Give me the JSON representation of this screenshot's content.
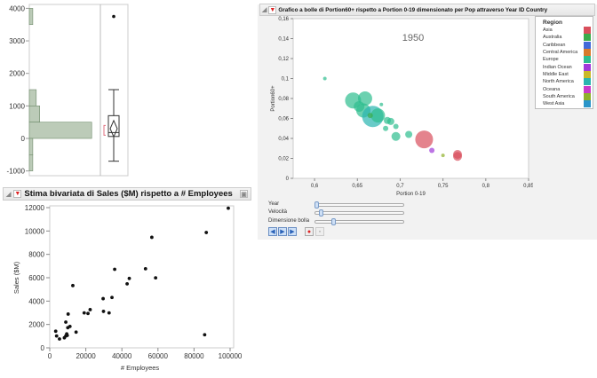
{
  "distribution": {
    "y_ticks": [
      "4000",
      "3000",
      "2000",
      "1000",
      "0",
      "-1000"
    ],
    "histogram": [
      {
        "from": 3500,
        "to": 4000,
        "count": 1
      },
      {
        "from": 1000,
        "to": 1500,
        "count": 2
      },
      {
        "from": 500,
        "to": 1000,
        "count": 3
      },
      {
        "from": 0,
        "to": 500,
        "count": 18
      },
      {
        "from": -500,
        "to": 0,
        "count": 1
      },
      {
        "from": -1000,
        "to": -500,
        "count": 1
      }
    ],
    "boxplot": {
      "min": -700,
      "q1": 60,
      "median": 180,
      "q3": 700,
      "max": 1500,
      "mean": 300,
      "outlier": 3750,
      "shortest_half": [
        100,
        400
      ]
    }
  },
  "bivariate": {
    "title": "Stima bivariata di Sales ($M) rispetto a # Employees",
    "chart_data": {
      "type": "scatter",
      "xlabel": "# Employees",
      "ylabel": "Sales ($M)",
      "xlim": [
        0,
        100000
      ],
      "ylim": [
        0,
        12000
      ],
      "x_ticks": [
        "0",
        "20000",
        "40000",
        "60000",
        "80000",
        "100000"
      ],
      "y_ticks": [
        "0",
        "2000",
        "4000",
        "6000",
        "8000",
        "10000",
        "12000"
      ],
      "points": [
        [
          3300,
          1420
        ],
        [
          3800,
          1015
        ],
        [
          5400,
          760
        ],
        [
          8100,
          860
        ],
        [
          8900,
          1015
        ],
        [
          8900,
          2200
        ],
        [
          9400,
          1190
        ],
        [
          9700,
          1065
        ],
        [
          10000,
          1725
        ],
        [
          10200,
          2890
        ],
        [
          11200,
          1830
        ],
        [
          12800,
          5330
        ],
        [
          14600,
          1345
        ],
        [
          19100,
          2990
        ],
        [
          21200,
          2940
        ],
        [
          22400,
          3270
        ],
        [
          29600,
          4210
        ],
        [
          29800,
          3120
        ],
        [
          32900,
          2990
        ],
        [
          34500,
          4310
        ],
        [
          36000,
          6720
        ],
        [
          42900,
          5480
        ],
        [
          44100,
          5940
        ],
        [
          53100,
          6770
        ],
        [
          56600,
          9460
        ],
        [
          58700,
          5990
        ],
        [
          85900,
          1120
        ],
        [
          86800,
          9870
        ],
        [
          99000,
          11950
        ]
      ]
    }
  },
  "bubble": {
    "title": "Grafico a bolle di Portion60+ rispetto a Portion 0-19 dimensionato per Pop attraverso Year ID Country",
    "year_label": "1950",
    "chart_data": {
      "type": "scatter",
      "xlabel": "Portion 0-19",
      "ylabel": "Portion60+",
      "xlim": [
        0.575,
        0.85
      ],
      "ylim": [
        0,
        0.16
      ],
      "x_ticks": [
        "0,6",
        "0,65",
        "0,7",
        "0,75",
        "0,8",
        "0,85"
      ],
      "y_ticks": [
        "0",
        "0,02",
        "0,04",
        "0,06",
        "0,08",
        "0,1",
        "0,12",
        "0,14",
        "0,16"
      ],
      "bubbles": [
        {
          "x": 0.612,
          "y": 0.1,
          "size": 2,
          "region": "Europe"
        },
        {
          "x": 0.645,
          "y": 0.078,
          "size": 9,
          "region": "Europe"
        },
        {
          "x": 0.659,
          "y": 0.08,
          "size": 8,
          "region": "Europe"
        },
        {
          "x": 0.652,
          "y": 0.072,
          "size": 6,
          "region": "Europe"
        },
        {
          "x": 0.657,
          "y": 0.068,
          "size": 8,
          "region": "Europe"
        },
        {
          "x": 0.678,
          "y": 0.074,
          "size": 2,
          "region": "Europe"
        },
        {
          "x": 0.668,
          "y": 0.062,
          "size": 12,
          "region": "North America"
        },
        {
          "x": 0.674,
          "y": 0.063,
          "size": 8,
          "region": "Europe"
        },
        {
          "x": 0.665,
          "y": 0.063,
          "size": 3,
          "region": "Australia"
        },
        {
          "x": 0.685,
          "y": 0.058,
          "size": 4,
          "region": "Europe"
        },
        {
          "x": 0.689,
          "y": 0.057,
          "size": 4,
          "region": "Europe"
        },
        {
          "x": 0.683,
          "y": 0.05,
          "size": 3,
          "region": "Europe"
        },
        {
          "x": 0.695,
          "y": 0.052,
          "size": 3,
          "region": "Europe"
        },
        {
          "x": 0.695,
          "y": 0.042,
          "size": 5,
          "region": "Europe"
        },
        {
          "x": 0.71,
          "y": 0.044,
          "size": 4,
          "region": "Europe"
        },
        {
          "x": 0.728,
          "y": 0.039,
          "size": 10,
          "region": "Asia"
        },
        {
          "x": 0.737,
          "y": 0.028,
          "size": 3,
          "region": "Indian Ocean"
        },
        {
          "x": 0.75,
          "y": 0.023,
          "size": 2,
          "region": "South America"
        },
        {
          "x": 0.767,
          "y": 0.024,
          "size": 5,
          "region": "Asia"
        },
        {
          "x": 0.767,
          "y": 0.022,
          "size": 5,
          "region": "Asia"
        }
      ]
    },
    "legend": {
      "title": "Region",
      "items": [
        {
          "label": "Asia",
          "color": "#d94f5c"
        },
        {
          "label": "Australia",
          "color": "#3aab4a"
        },
        {
          "label": "Caribbean",
          "color": "#4169d9"
        },
        {
          "label": "Central America",
          "color": "#d97a2b"
        },
        {
          "label": "Europe",
          "color": "#2ebd8f"
        },
        {
          "label": "Indian Ocean",
          "color": "#a03ad9"
        },
        {
          "label": "Middle East",
          "color": "#c9b92a"
        },
        {
          "label": "North America",
          "color": "#2ab5b0"
        },
        {
          "label": "Oceana",
          "color": "#c93ac9"
        },
        {
          "label": "South America",
          "color": "#8fb02a"
        },
        {
          "label": "West Asia",
          "color": "#2a95c9"
        }
      ]
    },
    "controls": {
      "year": "Year",
      "speed": "Velocità",
      "bubble_size": "Dimensione bolla",
      "year_value": 0,
      "speed_value": 0.05,
      "bubble_size_value": 0.2
    }
  }
}
